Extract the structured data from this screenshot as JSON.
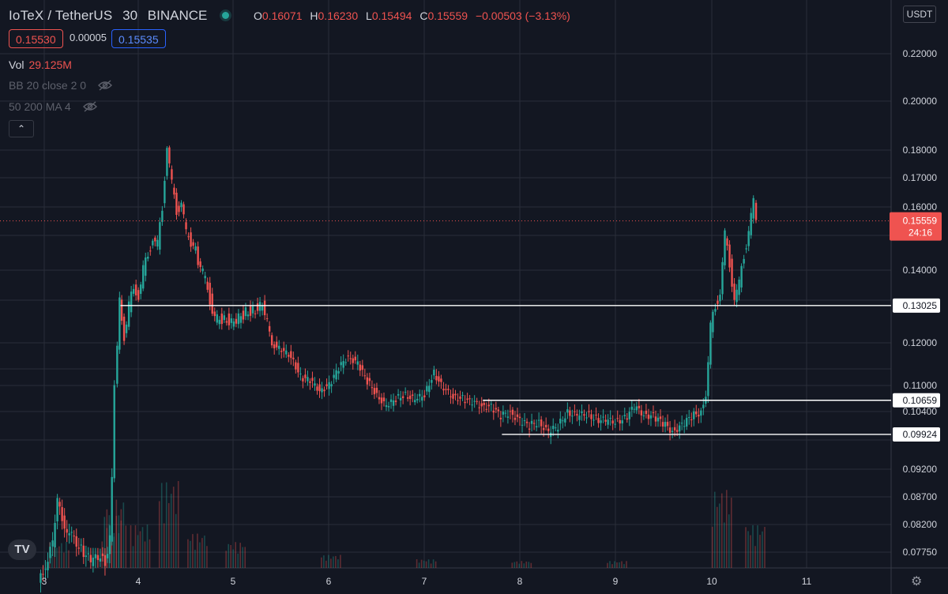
{
  "header": {
    "symbol": "IoTeX / TetherUS",
    "interval": "30",
    "exchange": "BINANCE",
    "status_color": "#26a69a",
    "ohlc": {
      "o_label": "O",
      "o": "0.16071",
      "h_label": "H",
      "h": "0.16230",
      "l_label": "L",
      "l": "0.15494",
      "c_label": "C",
      "c": "0.15559",
      "change": "−0.00503 (−3.13%)"
    },
    "bid": "0.15530",
    "spread": "0.00005",
    "ask": "0.15535"
  },
  "indicators": {
    "vol_label": "Vol",
    "vol_value": "29.125M",
    "bb_label": "BB 20 close 2 0",
    "ma_label": "50 200 MA 4",
    "eye_icon": "eye-slash-icon"
  },
  "currency": "USDT",
  "current_price": {
    "value": "0.15559",
    "countdown": "24:16",
    "color": "#ef5350"
  },
  "logo_text": "TV",
  "colors": {
    "up": "#26a69a",
    "down": "#ef5350",
    "background": "#131722",
    "grid": "#2a2e39",
    "text": "#d1d4dc"
  },
  "chart_data": {
    "type": "candlestick",
    "y_ticks": [
      "0.22000",
      "0.20000",
      "0.18000",
      "0.17000",
      "0.16000",
      "0.14000",
      "0.12000",
      "0.11000",
      "0.10400",
      "0.09200",
      "0.08700",
      "0.08200",
      "0.07750"
    ],
    "x_ticks": [
      "3",
      "4",
      "5",
      "6",
      "7",
      "8",
      "9",
      "10",
      "11"
    ],
    "horizontal_lines": [
      {
        "value": "0.13025",
        "from_day": 3.8,
        "to_day": 11.0
      },
      {
        "value": "0.10659",
        "from_day": 7.6,
        "to_day": 11.0
      },
      {
        "value": "0.09924",
        "from_day": 7.8,
        "to_day": 11.0
      }
    ],
    "series": [
      {
        "day": 3.0,
        "close": 0.074
      },
      {
        "day": 3.1,
        "close": 0.079
      },
      {
        "day": 3.15,
        "close": 0.086
      },
      {
        "day": 3.2,
        "close": 0.083
      },
      {
        "day": 3.25,
        "close": 0.081
      },
      {
        "day": 3.3,
        "close": 0.08
      },
      {
        "day": 3.4,
        "close": 0.078
      },
      {
        "day": 3.5,
        "close": 0.076
      },
      {
        "day": 3.6,
        "close": 0.077
      },
      {
        "day": 3.65,
        "close": 0.076
      },
      {
        "day": 3.7,
        "close": 0.08
      },
      {
        "day": 3.72,
        "close": 0.09
      },
      {
        "day": 3.75,
        "close": 0.11
      },
      {
        "day": 3.78,
        "close": 0.12
      },
      {
        "day": 3.8,
        "close": 0.131
      },
      {
        "day": 3.85,
        "close": 0.122
      },
      {
        "day": 3.9,
        "close": 0.13
      },
      {
        "day": 3.95,
        "close": 0.135
      },
      {
        "day": 4.0,
        "close": 0.133
      },
      {
        "day": 4.05,
        "close": 0.14
      },
      {
        "day": 4.1,
        "close": 0.145
      },
      {
        "day": 4.15,
        "close": 0.15
      },
      {
        "day": 4.2,
        "close": 0.148
      },
      {
        "day": 4.25,
        "close": 0.16
      },
      {
        "day": 4.3,
        "close": 0.181
      },
      {
        "day": 4.35,
        "close": 0.168
      },
      {
        "day": 4.4,
        "close": 0.159
      },
      {
        "day": 4.45,
        "close": 0.161
      },
      {
        "day": 4.5,
        "close": 0.152
      },
      {
        "day": 4.6,
        "close": 0.146
      },
      {
        "day": 4.65,
        "close": 0.14
      },
      {
        "day": 4.7,
        "close": 0.138
      },
      {
        "day": 4.75,
        "close": 0.132
      },
      {
        "day": 4.8,
        "close": 0.126
      },
      {
        "day": 4.9,
        "close": 0.127
      },
      {
        "day": 5.0,
        "close": 0.125
      },
      {
        "day": 5.1,
        "close": 0.128
      },
      {
        "day": 5.2,
        "close": 0.129
      },
      {
        "day": 5.3,
        "close": 0.13
      },
      {
        "day": 5.35,
        "close": 0.125
      },
      {
        "day": 5.4,
        "close": 0.12
      },
      {
        "day": 5.5,
        "close": 0.118
      },
      {
        "day": 5.6,
        "close": 0.117
      },
      {
        "day": 5.7,
        "close": 0.112
      },
      {
        "day": 5.8,
        "close": 0.111
      },
      {
        "day": 5.9,
        "close": 0.109
      },
      {
        "day": 6.0,
        "close": 0.11
      },
      {
        "day": 6.1,
        "close": 0.114
      },
      {
        "day": 6.2,
        "close": 0.117
      },
      {
        "day": 6.3,
        "close": 0.115
      },
      {
        "day": 6.4,
        "close": 0.111
      },
      {
        "day": 6.5,
        "close": 0.108
      },
      {
        "day": 6.6,
        "close": 0.105
      },
      {
        "day": 6.7,
        "close": 0.107
      },
      {
        "day": 6.8,
        "close": 0.108
      },
      {
        "day": 6.9,
        "close": 0.1065
      },
      {
        "day": 7.0,
        "close": 0.108
      },
      {
        "day": 7.1,
        "close": 0.113
      },
      {
        "day": 7.2,
        "close": 0.109
      },
      {
        "day": 7.3,
        "close": 0.1075
      },
      {
        "day": 7.4,
        "close": 0.107
      },
      {
        "day": 7.5,
        "close": 0.106
      },
      {
        "day": 7.6,
        "close": 0.1055
      },
      {
        "day": 7.7,
        "close": 0.105
      },
      {
        "day": 7.8,
        "close": 0.103
      },
      {
        "day": 7.9,
        "close": 0.104
      },
      {
        "day": 8.0,
        "close": 0.102
      },
      {
        "day": 8.1,
        "close": 0.101
      },
      {
        "day": 8.2,
        "close": 0.102
      },
      {
        "day": 8.3,
        "close": 0.0995
      },
      {
        "day": 8.4,
        "close": 0.101
      },
      {
        "day": 8.5,
        "close": 0.104
      },
      {
        "day": 8.6,
        "close": 0.103
      },
      {
        "day": 8.7,
        "close": 0.1035
      },
      {
        "day": 8.8,
        "close": 0.1025
      },
      {
        "day": 8.9,
        "close": 0.102
      },
      {
        "day": 9.0,
        "close": 0.102
      },
      {
        "day": 9.1,
        "close": 0.1025
      },
      {
        "day": 9.2,
        "close": 0.105
      },
      {
        "day": 9.3,
        "close": 0.1035
      },
      {
        "day": 9.4,
        "close": 0.103
      },
      {
        "day": 9.5,
        "close": 0.1015
      },
      {
        "day": 9.6,
        "close": 0.1
      },
      {
        "day": 9.7,
        "close": 0.101
      },
      {
        "day": 9.8,
        "close": 0.103
      },
      {
        "day": 9.9,
        "close": 0.104
      },
      {
        "day": 9.95,
        "close": 0.108
      },
      {
        "day": 10.0,
        "close": 0.124
      },
      {
        "day": 10.05,
        "close": 0.13
      },
      {
        "day": 10.1,
        "close": 0.134
      },
      {
        "day": 10.15,
        "close": 0.151
      },
      {
        "day": 10.2,
        "close": 0.142
      },
      {
        "day": 10.25,
        "close": 0.132
      },
      {
        "day": 10.3,
        "close": 0.136
      },
      {
        "day": 10.35,
        "close": 0.145
      },
      {
        "day": 10.4,
        "close": 0.152
      },
      {
        "day": 10.45,
        "close": 0.162
      },
      {
        "day": 10.48,
        "close": 0.1556
      }
    ],
    "volume": [
      {
        "day": 3.15,
        "value": 0.3
      },
      {
        "day": 3.7,
        "value": 0.6
      },
      {
        "day": 3.75,
        "value": 0.8
      },
      {
        "day": 4.0,
        "value": 0.5
      },
      {
        "day": 4.3,
        "value": 1.0
      },
      {
        "day": 4.6,
        "value": 0.4
      },
      {
        "day": 5.0,
        "value": 0.3
      },
      {
        "day": 6.0,
        "value": 0.15
      },
      {
        "day": 7.0,
        "value": 0.1
      },
      {
        "day": 8.0,
        "value": 0.08
      },
      {
        "day": 9.0,
        "value": 0.08
      },
      {
        "day": 10.1,
        "value": 0.9
      },
      {
        "day": 10.45,
        "value": 0.5
      }
    ]
  }
}
